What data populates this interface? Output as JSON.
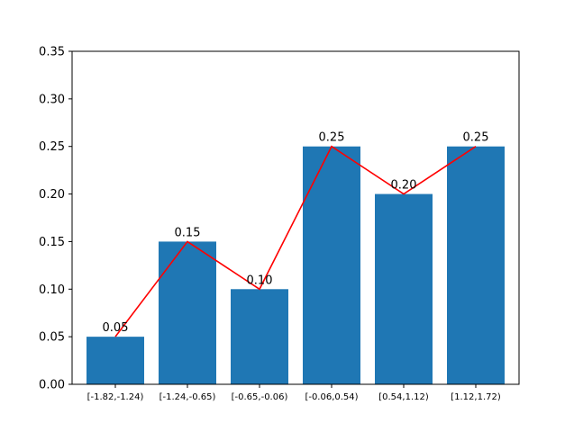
{
  "chart_data": {
    "type": "bar",
    "categories": [
      "[-1.82,-1.24)",
      "[-1.24,-0.65)",
      "[-0.65,-0.06)",
      "[-0.06,0.54)",
      "[0.54,1.12)",
      "[1.12,1.72)"
    ],
    "values": [
      0.05,
      0.15,
      0.1,
      0.25,
      0.2,
      0.25
    ],
    "value_labels": [
      "0.05",
      "0.15",
      "0.10",
      "0.25",
      "0.20",
      "0.25"
    ],
    "overlay_line": {
      "type": "line",
      "values": [
        0.05,
        0.15,
        0.1,
        0.25,
        0.2,
        0.25
      ],
      "color": "#ff0000"
    },
    "title": "",
    "xlabel": "",
    "ylabel": "",
    "ylim": [
      0,
      0.35
    ],
    "yticks": [
      "0.00",
      "0.05",
      "0.10",
      "0.15",
      "0.20",
      "0.25",
      "0.30",
      "0.35"
    ],
    "grid": false,
    "colors": {
      "bar": "#1f77b4",
      "line": "#ff0000"
    }
  }
}
